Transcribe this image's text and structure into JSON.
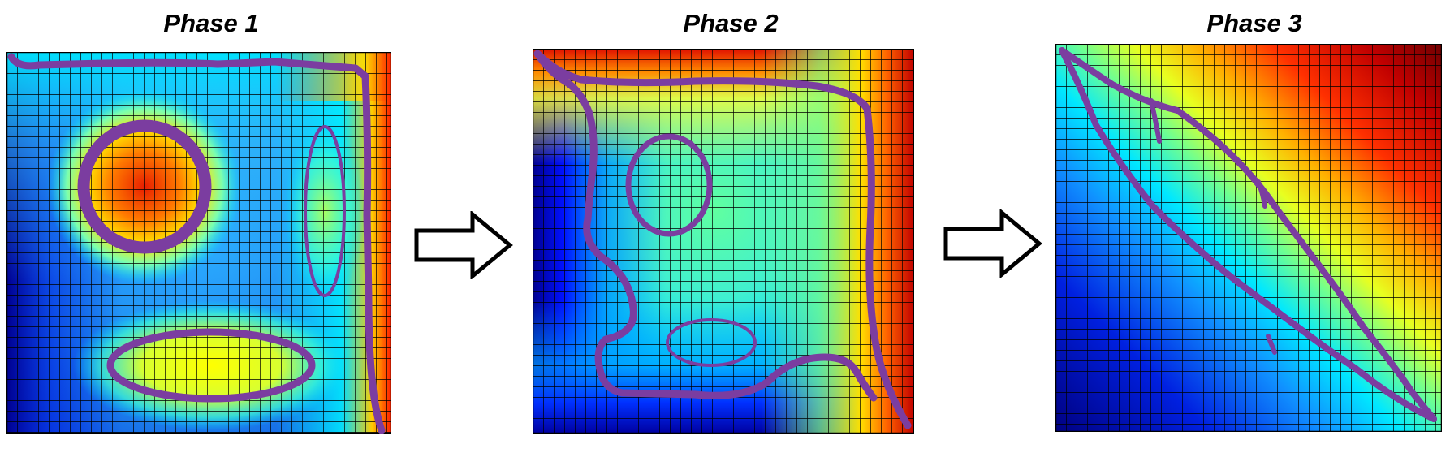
{
  "phases": [
    {
      "title": "Phase 1"
    },
    {
      "title": "Phase 2"
    },
    {
      "title": "Phase 3"
    }
  ],
  "colormap": [
    "#00008f",
    "#0000ff",
    "#00ffff",
    "#ffff00",
    "#ff0000",
    "#800000"
  ],
  "outline_color": "#7b3da0",
  "grid_line_color": "#000000",
  "icons": {
    "transition_arrow": "right-arrow-icon"
  }
}
